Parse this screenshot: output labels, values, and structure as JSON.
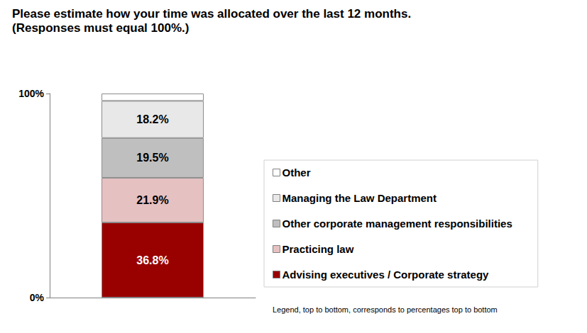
{
  "chart_data": {
    "type": "bar",
    "title": "Please estimate how your time was allocated over the last 12 months.",
    "subtitle": "(Responses must equal 100%.)",
    "annotation": "Legend, top to bottom, corresponds to percentages top to bottom",
    "categories": [
      null
    ],
    "stacked": true,
    "data_labels": true,
    "legend": "right",
    "grid": false,
    "ylim": [
      0,
      100
    ],
    "yticks": [
      {
        "value": 0,
        "label": "0%"
      },
      {
        "value": 100,
        "label": "100%"
      }
    ],
    "series": [
      {
        "name": "Advising executives / Corporate strategy",
        "color": "#990000",
        "values": [
          36.8
        ],
        "value_labels": [
          "36.8%"
        ]
      },
      {
        "name": "Practicing law",
        "color": "#e6c1c1",
        "values": [
          21.9
        ],
        "value_labels": [
          "21.9%"
        ]
      },
      {
        "name": "Other corporate management responsibilities",
        "color": "#bfbfbf",
        "values": [
          19.5
        ],
        "value_labels": [
          "19.5%"
        ]
      },
      {
        "name": "Managing the Law Department",
        "color": "#e8e8e8",
        "values": [
          18.2
        ],
        "value_labels": [
          "18.2%"
        ]
      },
      {
        "name": "Other",
        "color": "#ffffff",
        "values": [
          3.6
        ],
        "value_labels": [
          null
        ]
      }
    ]
  }
}
